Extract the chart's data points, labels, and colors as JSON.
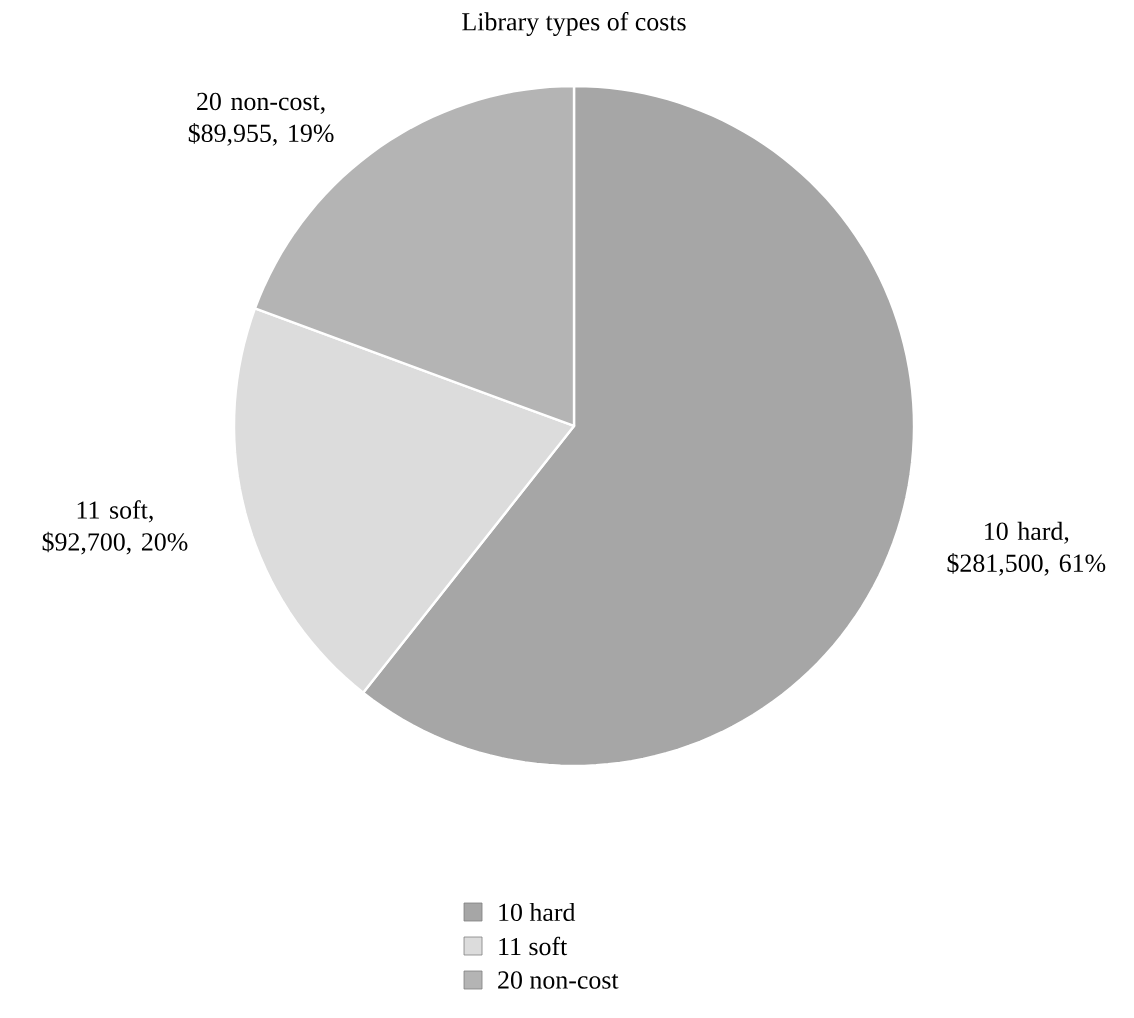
{
  "chart_data": {
    "type": "pie",
    "title": "Library types of costs",
    "categories": [
      "10 hard",
      "11 soft",
      "20 non-cost"
    ],
    "values": [
      281500,
      92700,
      89955
    ],
    "value_labels": [
      "10 hard, $281,500, 61%",
      "11 soft, $92,700, 20%",
      "20 non-cost, $89,955, 19%"
    ],
    "colors": [
      "#a6a6a6",
      "#dcdcdc",
      "#b4b4b4"
    ],
    "legend": "bottom"
  }
}
